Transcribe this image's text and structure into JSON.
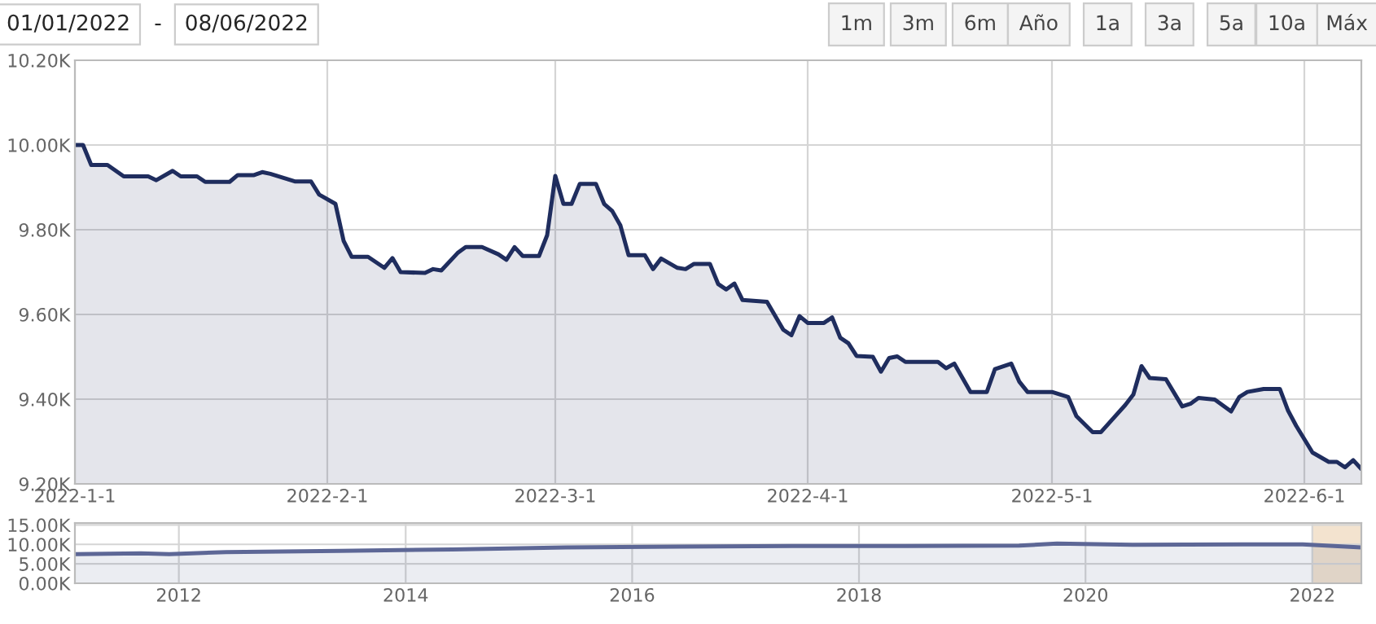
{
  "chart_data": [
    {
      "type": "area",
      "annotations": [
        "01/01/2022",
        "-",
        "08/06/2022",
        "1m",
        "3m",
        "6m",
        "Año",
        "1a",
        "3a",
        "5a",
        "10a",
        "Máx"
      ],
      "x": [
        "2022-01-01",
        "2022-01-02",
        "2022-01-03",
        "2022-01-05",
        "2022-01-07",
        "2022-01-10",
        "2022-01-11",
        "2022-01-13",
        "2022-01-14",
        "2022-01-16",
        "2022-01-17",
        "2022-01-20",
        "2022-01-21",
        "2022-01-23",
        "2022-01-24",
        "2022-01-25",
        "2022-01-28",
        "2022-01-30",
        "2022-01-31",
        "2022-02-02",
        "2022-02-03",
        "2022-02-04",
        "2022-02-06",
        "2022-02-08",
        "2022-02-09",
        "2022-02-10",
        "2022-02-13",
        "2022-02-14",
        "2022-02-15",
        "2022-02-17",
        "2022-02-18",
        "2022-02-20",
        "2022-02-22",
        "2022-02-23",
        "2022-02-24",
        "2022-02-25",
        "2022-02-27",
        "2022-02-28",
        "2022-03-01",
        "2022-03-02",
        "2022-03-03",
        "2022-03-04",
        "2022-03-06",
        "2022-03-07",
        "2022-03-08",
        "2022-03-09",
        "2022-03-10",
        "2022-03-12",
        "2022-03-13",
        "2022-03-14",
        "2022-03-16",
        "2022-03-17",
        "2022-03-18",
        "2022-03-20",
        "2022-03-21",
        "2022-03-22",
        "2022-03-23",
        "2022-03-24",
        "2022-03-27",
        "2022-03-29",
        "2022-03-30",
        "2022-03-31",
        "2022-04-01",
        "2022-04-03",
        "2022-04-04",
        "2022-04-05",
        "2022-04-06",
        "2022-04-07",
        "2022-04-09",
        "2022-04-10",
        "2022-04-11",
        "2022-04-12",
        "2022-04-13",
        "2022-04-17",
        "2022-04-18",
        "2022-04-19",
        "2022-04-21",
        "2022-04-23",
        "2022-04-24",
        "2022-04-26",
        "2022-04-27",
        "2022-04-28",
        "2022-05-01",
        "2022-05-03",
        "2022-05-04",
        "2022-05-06",
        "2022-05-07",
        "2022-05-10",
        "2022-05-11",
        "2022-05-12",
        "2022-05-13",
        "2022-05-15",
        "2022-05-17",
        "2022-05-18",
        "2022-05-19",
        "2022-05-21",
        "2022-05-23",
        "2022-05-24",
        "2022-05-25",
        "2022-05-27",
        "2022-05-29",
        "2022-05-30",
        "2022-05-31",
        "2022-06-02",
        "2022-06-04",
        "2022-06-05",
        "2022-06-06",
        "2022-06-07",
        "2022-06-08"
      ],
      "series": [
        {
          "color": "#1f2d5e",
          "values": [
            10000,
            10000,
            9953,
            9953,
            9926,
            9926,
            9917,
            9939,
            9926,
            9926,
            9913,
            9913,
            9929,
            9929,
            9936,
            9932,
            9914,
            9914,
            9883,
            9861,
            9774,
            9736,
            9736,
            9710,
            9733,
            9700,
            9698,
            9707,
            9704,
            9745,
            9759,
            9759,
            9742,
            9729,
            9759,
            9738,
            9738,
            9787,
            9927,
            9861,
            9861,
            9908,
            9908,
            9861,
            9844,
            9810,
            9740,
            9740,
            9707,
            9732,
            9710,
            9707,
            9719,
            9719,
            9672,
            9659,
            9673,
            9634,
            9630,
            9564,
            9551,
            9596,
            9580,
            9580,
            9593,
            9545,
            9532,
            9502,
            9500,
            9465,
            9497,
            9501,
            9488,
            9488,
            9473,
            9484,
            9417,
            9417,
            9471,
            9484,
            9441,
            9417,
            9417,
            9405,
            9360,
            9322,
            9322,
            9386,
            9411,
            9478,
            9450,
            9447,
            9383,
            9389,
            9403,
            9399,
            9371,
            9405,
            9417,
            9424,
            9424,
            9373,
            9337,
            9274,
            9252,
            9252,
            9239,
            9256,
            9235
          ]
        }
      ],
      "xlim": [
        "2022-01-01",
        "2022-06-08"
      ],
      "xticks": [
        {
          "value": "2022-01-01",
          "label": "2022-1-1"
        },
        {
          "value": "2022-02-01",
          "label": "2022-2-1"
        },
        {
          "value": "2022-03-01",
          "label": "2022-3-1"
        },
        {
          "value": "2022-04-01",
          "label": "2022-4-1"
        },
        {
          "value": "2022-05-01",
          "label": "2022-5-1"
        },
        {
          "value": "2022-06-01",
          "label": "2022-6-1"
        }
      ],
      "ylim": [
        9200,
        10200
      ],
      "yticks": [
        {
          "value": 9200,
          "label": "9.20K"
        },
        {
          "value": 9400,
          "label": "9.40K"
        },
        {
          "value": 9600,
          "label": "9.60K"
        },
        {
          "value": 9800,
          "label": "9.80K"
        },
        {
          "value": 10000,
          "label": "10.00K"
        },
        {
          "value": 10200,
          "label": "10.20K"
        }
      ],
      "grid": true
    },
    {
      "type": "area",
      "x": [
        "2011-02-01",
        "2011-09-01",
        "2011-12-01",
        "2012-06-01",
        "2013-06-01",
        "2014-06-01",
        "2015-06-01",
        "2016-06-01",
        "2017-06-01",
        "2018-06-01",
        "2019-06-01",
        "2019-10-01",
        "2020-06-01",
        "2021-06-01",
        "2021-12-01",
        "2022-06-08"
      ],
      "series": [
        {
          "color": "#5d6796",
          "values": [
            7500,
            7700,
            7500,
            8000,
            8300,
            8700,
            9200,
            9400,
            9600,
            9600,
            9700,
            10200,
            9900,
            10000,
            10000,
            9200
          ]
        }
      ],
      "xlim": [
        "2011-01-31",
        "2022-06-08"
      ],
      "xticks": [
        {
          "value": "2012-01-01",
          "label": "2012"
        },
        {
          "value": "2014-01-01",
          "label": "2014"
        },
        {
          "value": "2016-01-01",
          "label": "2016"
        },
        {
          "value": "2018-01-01",
          "label": "2018"
        },
        {
          "value": "2020-01-01",
          "label": "2020"
        },
        {
          "value": "2022-01-01",
          "label": "2022"
        }
      ],
      "ylim": [
        0,
        15500
      ],
      "yticks": [
        {
          "value": 0,
          "label": "0.00K"
        },
        {
          "value": 5000,
          "label": "5.00K"
        },
        {
          "value": 10000,
          "label": "10.00K"
        },
        {
          "value": 15000,
          "label": "15.00K"
        }
      ],
      "bands": [
        {
          "axis": "x",
          "from": "2022-01-01",
          "to": "2022-06-08",
          "color": "#f3e3cf"
        }
      ],
      "grid": true
    }
  ]
}
